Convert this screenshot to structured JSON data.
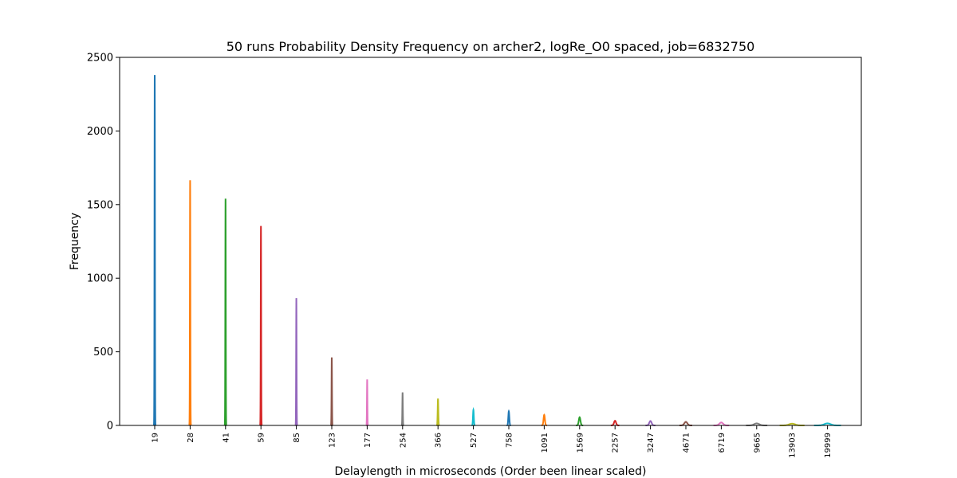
{
  "chart_data": {
    "type": "line",
    "title": "50 runs Probability Density Frequency on archer2, logRe_O0 spaced, job=6832750",
    "xlabel": "Delaylength in microseconds (Order been linear scaled)",
    "ylabel": "Frequency",
    "ylim": [
      0,
      2500
    ],
    "yticks": [
      0,
      500,
      1000,
      1500,
      2000,
      2500
    ],
    "grid": false,
    "categories": [
      "19",
      "28",
      "41",
      "59",
      "85",
      "123",
      "177",
      "254",
      "366",
      "527",
      "758",
      "1091",
      "1569",
      "2257",
      "3247",
      "4671",
      "6719",
      "9665",
      "13903",
      "19999"
    ],
    "peak_frequencies": [
      2380,
      1665,
      1540,
      1355,
      865,
      462,
      312,
      224,
      182,
      106,
      96,
      72,
      56,
      32,
      30,
      24,
      20,
      14,
      12,
      14
    ],
    "peak_spread": [
      0.02,
      0.02,
      0.02,
      0.02,
      0.02,
      0.02,
      0.02,
      0.03,
      0.04,
      0.05,
      0.06,
      0.08,
      0.1,
      0.12,
      0.14,
      0.18,
      0.22,
      0.3,
      0.35,
      0.38
    ],
    "colors": [
      "#1f77b4",
      "#ff7f0e",
      "#2ca02c",
      "#d62728",
      "#9467bd",
      "#8c564b",
      "#e377c2",
      "#7f7f7f",
      "#bcbd22",
      "#17becf"
    ]
  }
}
